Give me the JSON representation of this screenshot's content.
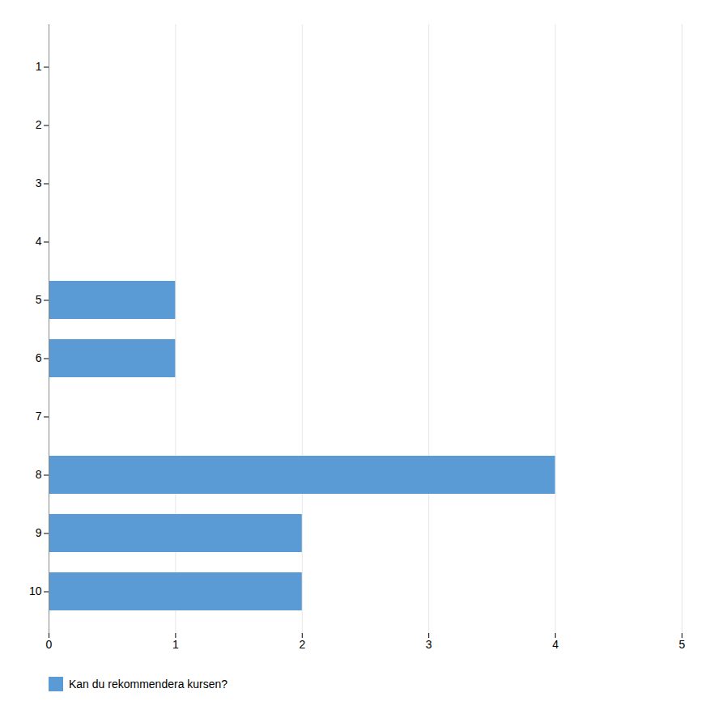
{
  "chart_data": {
    "type": "bar",
    "orientation": "horizontal",
    "categories": [
      "1",
      "2",
      "3",
      "4",
      "5",
      "6",
      "7",
      "8",
      "9",
      "10"
    ],
    "series": [
      {
        "name": "Kan du rekommendera kursen?",
        "color": "#5b9bd5",
        "values": [
          0,
          0,
          0,
          0,
          1,
          1,
          0,
          4,
          2,
          2
        ]
      }
    ],
    "xlim": [
      0,
      5
    ],
    "xticks": [
      0,
      1,
      2,
      3,
      4,
      5
    ],
    "grid": true,
    "legend": "bottom"
  }
}
